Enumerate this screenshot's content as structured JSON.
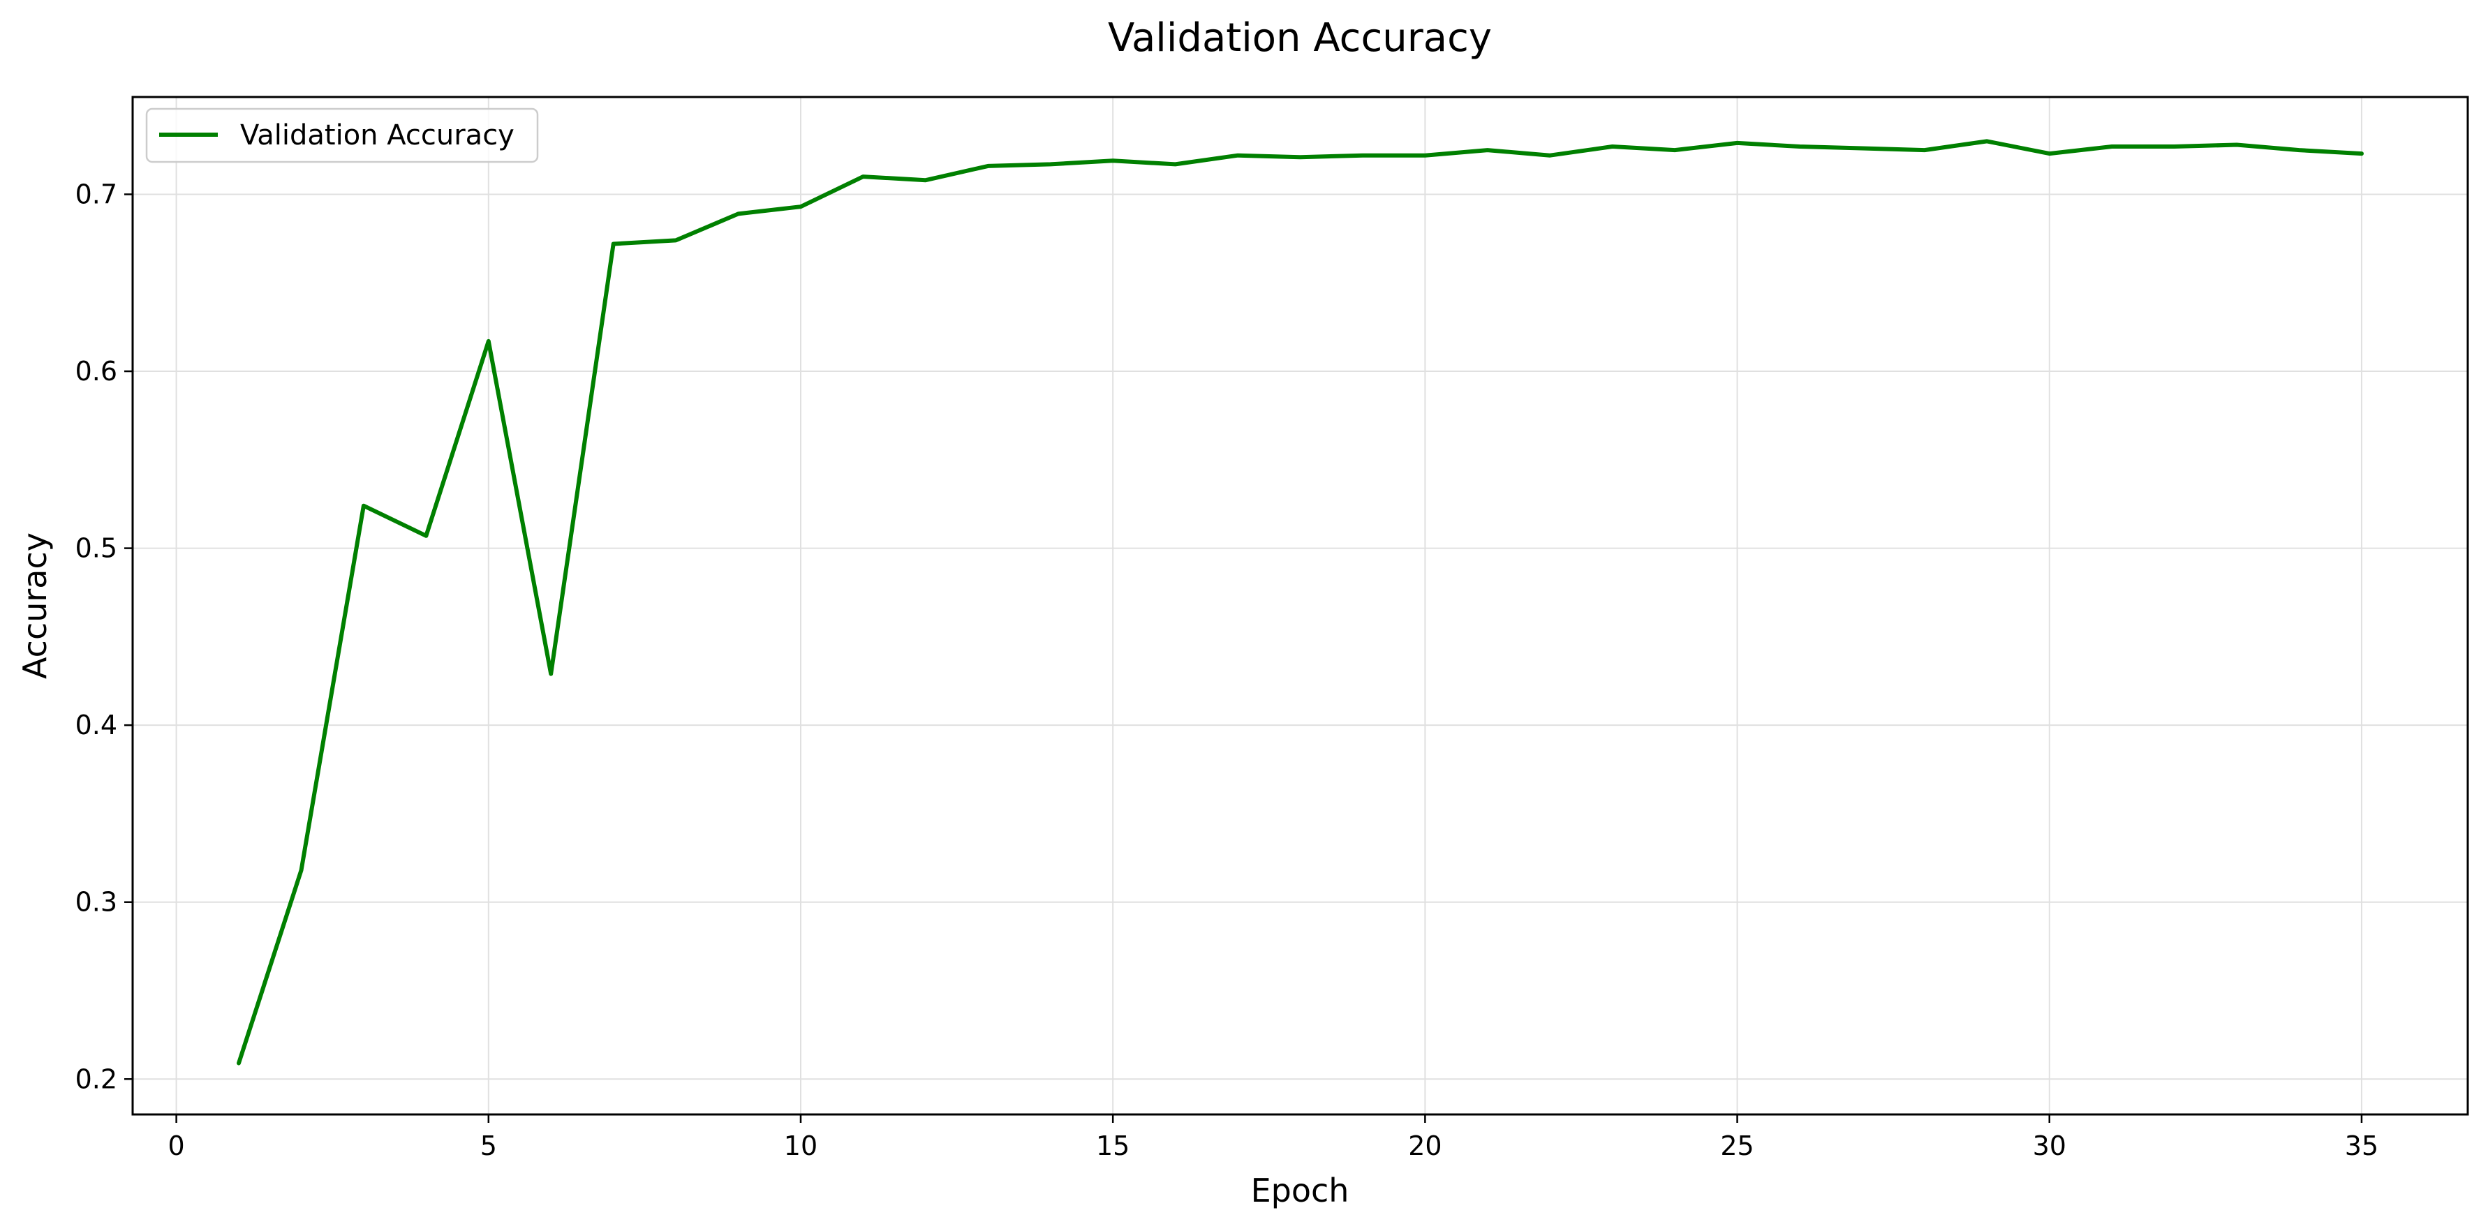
{
  "chart_data": {
    "type": "line",
    "title": "Validation Accuracy",
    "xlabel": "Epoch",
    "ylabel": "Accuracy",
    "xlim": [
      -0.7,
      36.7
    ],
    "ylim": [
      0.18,
      0.755
    ],
    "xticks": [
      0,
      5,
      10,
      15,
      20,
      25,
      30,
      35
    ],
    "yticks": [
      0.2,
      0.3,
      0.4,
      0.5,
      0.6,
      0.7
    ],
    "grid": true,
    "legend_position": "top-left",
    "series": [
      {
        "name": "Validation Accuracy",
        "color": "#008000",
        "x": [
          1,
          2,
          3,
          4,
          5,
          6,
          7,
          8,
          9,
          10,
          11,
          12,
          13,
          14,
          15,
          16,
          17,
          18,
          19,
          20,
          21,
          22,
          23,
          24,
          25,
          26,
          27,
          28,
          29,
          30,
          31,
          32,
          33,
          34,
          35
        ],
        "y": [
          0.209,
          0.318,
          0.524,
          0.507,
          0.617,
          0.429,
          0.672,
          0.674,
          0.689,
          0.693,
          0.71,
          0.708,
          0.716,
          0.717,
          0.719,
          0.717,
          0.722,
          0.721,
          0.722,
          0.722,
          0.725,
          0.722,
          0.727,
          0.725,
          0.729,
          0.727,
          0.726,
          0.725,
          0.73,
          0.723,
          0.727,
          0.727,
          0.728,
          0.725,
          0.723
        ]
      }
    ]
  }
}
